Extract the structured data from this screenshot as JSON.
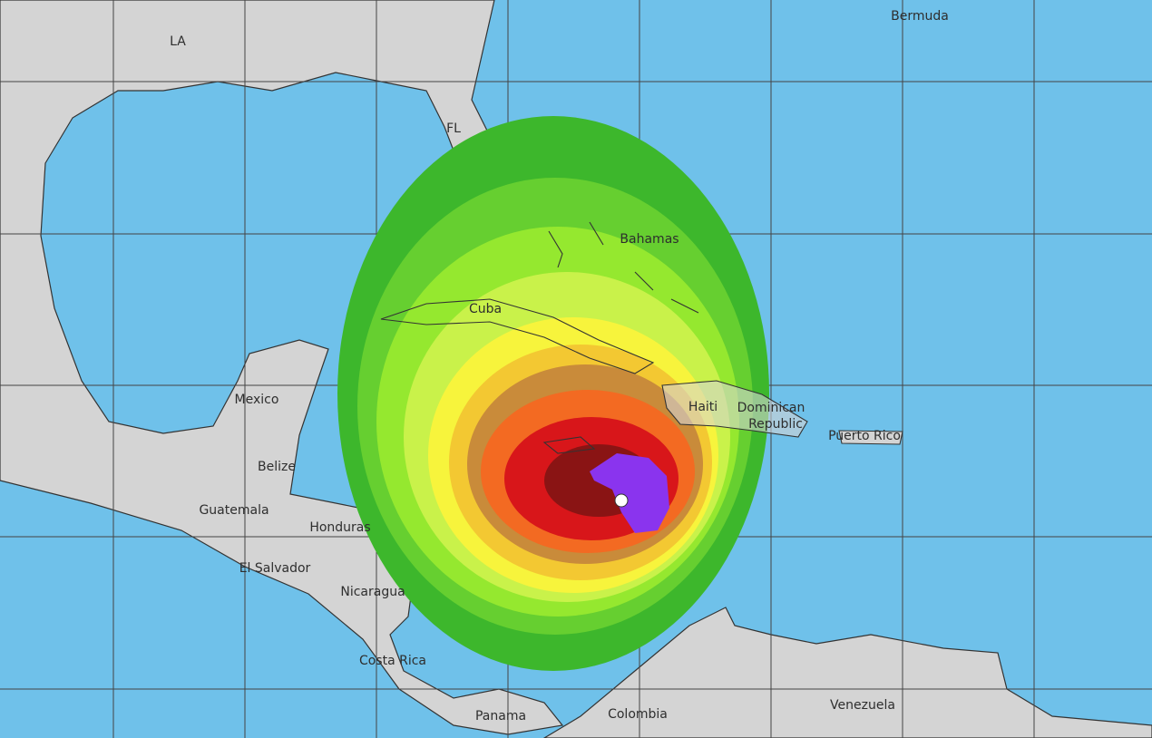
{
  "labels": [
    "LA",
    "FL",
    "Bermuda",
    "Bahamas",
    "Cuba",
    "Mexico",
    "Belize",
    "Guatemala",
    "Honduras",
    "El Salvador",
    "Nicaragua",
    "Costa Rica",
    "Panama",
    "Colombia",
    "Venezuela",
    "Haiti",
    "Dominican",
    "Republic",
    "Puerto Rico"
  ]
}
